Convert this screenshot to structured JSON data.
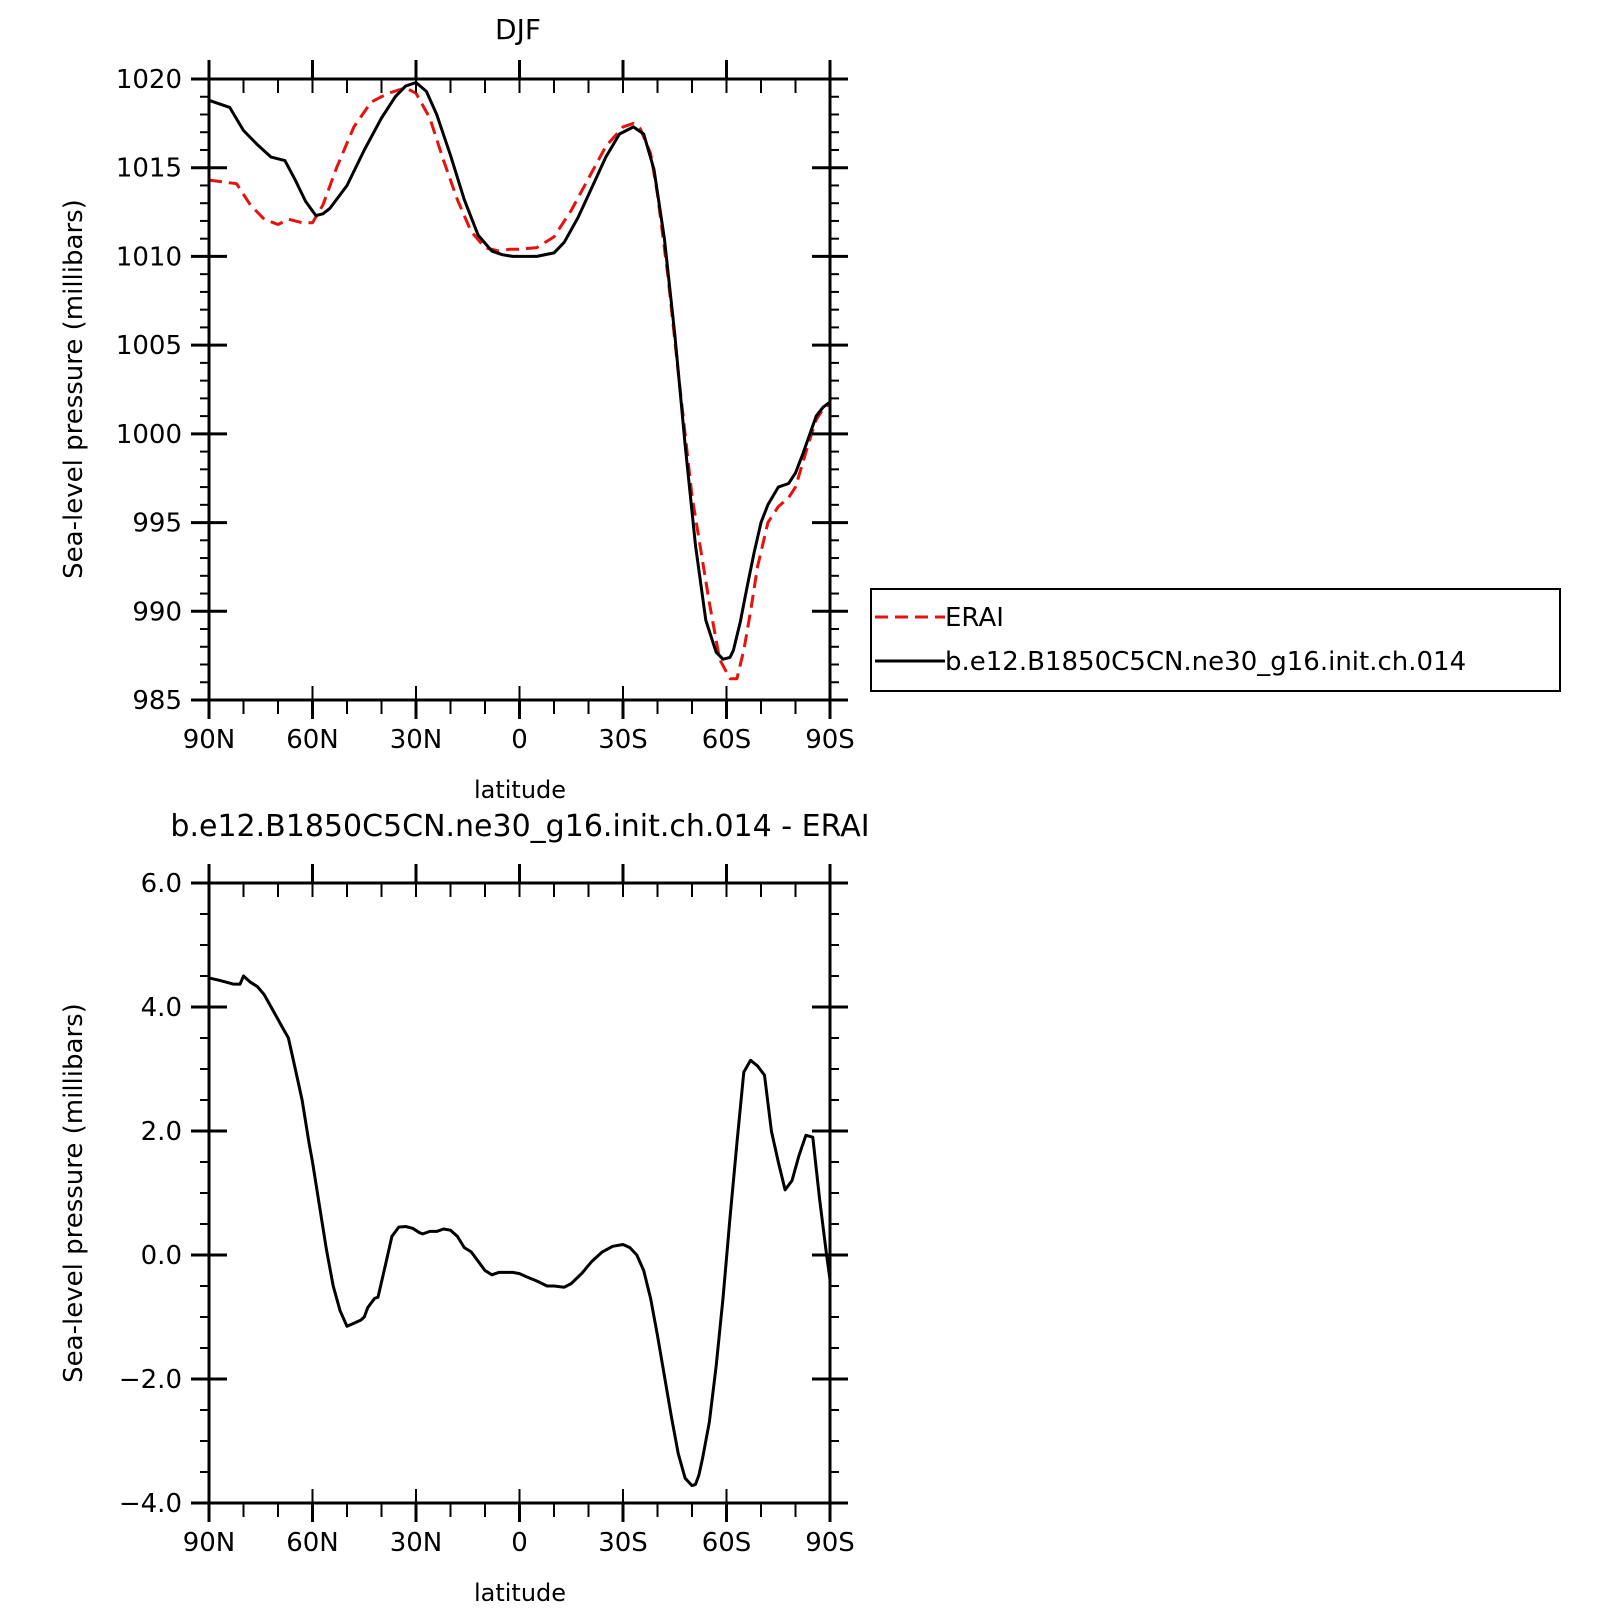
{
  "chart_data": [
    {
      "type": "line",
      "title": "DJF",
      "xlabel": "latitude",
      "ylabel": "Sea-level pressure (millibars)",
      "xlim": [
        90,
        -90
      ],
      "ylim": [
        985,
        1020
      ],
      "x_ticks": [
        {
          "value": 90,
          "label": "90N"
        },
        {
          "value": 60,
          "label": "60N"
        },
        {
          "value": 30,
          "label": "30N"
        },
        {
          "value": 0,
          "label": "0"
        },
        {
          "value": -30,
          "label": "30S"
        },
        {
          "value": -60,
          "label": "60S"
        },
        {
          "value": -90,
          "label": "90S"
        }
      ],
      "y_ticks": [
        {
          "value": 1020,
          "label": "1020"
        },
        {
          "value": 1015,
          "label": "1015"
        },
        {
          "value": 1010,
          "label": "1010"
        },
        {
          "value": 1005,
          "label": "1005"
        },
        {
          "value": 1000,
          "label": "1000"
        },
        {
          "value": 995,
          "label": "995"
        },
        {
          "value": 990,
          "label": "990"
        },
        {
          "value": 985,
          "label": "985"
        }
      ],
      "legend": {
        "placement": "right"
      },
      "series": [
        {
          "name": "ERAI",
          "color": "#e8120c",
          "dash": "dashed",
          "x": [
            90,
            82,
            78,
            74,
            70,
            67,
            63,
            60,
            57,
            53,
            48,
            43,
            38,
            33,
            30,
            26,
            22,
            18,
            14,
            10,
            6,
            3,
            0,
            -5,
            -10,
            -15,
            -20,
            -25,
            -30,
            -33,
            -35,
            -38,
            -40,
            -43,
            -46,
            -50,
            -55,
            -58,
            -61,
            -63,
            -65,
            -67,
            -69,
            -72,
            -75,
            -78,
            -80,
            -82,
            -84,
            -86,
            -88,
            -90
          ],
          "y": [
            1014.3,
            1014.1,
            1012.9,
            1012.1,
            1011.8,
            1012.1,
            1011.9,
            1011.9,
            1012.9,
            1015.0,
            1017.3,
            1018.7,
            1019.2,
            1019.5,
            1019.2,
            1017.8,
            1015.4,
            1013.2,
            1011.4,
            1010.5,
            1010.3,
            1010.4,
            1010.4,
            1010.5,
            1011.1,
            1012.6,
            1014.4,
            1016.2,
            1017.3,
            1017.5,
            1017.2,
            1015.8,
            1013.5,
            1008.9,
            1003.5,
            996.5,
            990.5,
            987.3,
            986.2,
            986.2,
            987.8,
            990.0,
            992.5,
            995.0,
            995.9,
            996.4,
            997.0,
            998.3,
            999.6,
            1000.8,
            1001.4,
            1001.7
          ]
        },
        {
          "name": "b.e12.B1850C5CN.ne30_g16.init.ch.014",
          "color": "#000000",
          "dash": "solid",
          "x": [
            90,
            84,
            80,
            76,
            72,
            70,
            68,
            65,
            62,
            59,
            57,
            55,
            50,
            45,
            40,
            36,
            33,
            30,
            27,
            24,
            20,
            16,
            12,
            8,
            5,
            2,
            0,
            -5,
            -10,
            -13,
            -17,
            -21,
            -25,
            -29,
            -33,
            -36,
            -39,
            -42,
            -45,
            -48,
            -51,
            -54,
            -57,
            -59,
            -61,
            -62,
            -64,
            -66,
            -68,
            -70,
            -72,
            -75,
            -78,
            -80,
            -82,
            -84,
            -86,
            -88,
            -90
          ],
          "y": [
            1018.8,
            1018.4,
            1017.1,
            1016.3,
            1015.6,
            1015.5,
            1015.4,
            1014.3,
            1013.1,
            1012.3,
            1012.4,
            1012.7,
            1014.0,
            1016.0,
            1017.8,
            1019.0,
            1019.6,
            1019.8,
            1019.3,
            1018.0,
            1015.7,
            1013.2,
            1011.2,
            1010.3,
            1010.1,
            1010.0,
            1010.0,
            1010.0,
            1010.2,
            1010.8,
            1012.2,
            1013.9,
            1015.6,
            1016.9,
            1017.3,
            1016.9,
            1014.9,
            1011.0,
            1005.6,
            999.4,
            993.7,
            989.5,
            987.7,
            987.3,
            987.4,
            987.8,
            989.4,
            991.4,
            993.3,
            995.0,
            996.0,
            997.0,
            997.2,
            997.8,
            998.8,
            999.9,
            1001.0,
            1001.5,
            1001.8
          ]
        }
      ]
    },
    {
      "type": "line",
      "title": "b.e12.B1850C5CN.ne30_g16.init.ch.014 - ERAI",
      "xlabel": "latitude",
      "ylabel": "Sea-level pressure (millibars)",
      "xlim": [
        90,
        -90
      ],
      "ylim": [
        -4.0,
        6.0
      ],
      "x_ticks": [
        {
          "value": 90,
          "label": "90N"
        },
        {
          "value": 60,
          "label": "60N"
        },
        {
          "value": 30,
          "label": "30N"
        },
        {
          "value": 0,
          "label": "0"
        },
        {
          "value": -30,
          "label": "30S"
        },
        {
          "value": -60,
          "label": "60S"
        },
        {
          "value": -90,
          "label": "90S"
        }
      ],
      "y_ticks": [
        {
          "value": 6.0,
          "label": "6.0"
        },
        {
          "value": 4.0,
          "label": "4.0"
        },
        {
          "value": 2.0,
          "label": "2.0"
        },
        {
          "value": 0.0,
          "label": "0.0"
        },
        {
          "value": -2.0,
          "label": "−2.0"
        },
        {
          "value": -4.0,
          "label": "−4.0"
        }
      ],
      "series": [
        {
          "color": "#000000",
          "dash": "solid",
          "x": [
            90,
            87,
            85,
            83,
            81,
            80,
            78,
            76,
            74,
            72,
            70,
            69,
            67,
            65,
            63,
            61,
            60,
            58,
            56,
            54,
            52,
            50,
            48,
            46,
            45,
            44,
            42,
            41,
            39,
            37,
            35,
            33,
            31,
            29,
            28,
            26,
            24,
            22,
            20,
            18,
            16,
            14,
            12,
            10,
            8,
            6,
            4,
            2,
            0,
            -2,
            -5,
            -8,
            -10,
            -13,
            -15,
            -18,
            -21,
            -24,
            -27,
            -30,
            -32,
            -34,
            -36,
            -38,
            -40,
            -42,
            -44,
            -46,
            -48,
            -50,
            -51,
            -52,
            -53,
            -55,
            -57,
            -59,
            -61,
            -63,
            -65,
            -67,
            -69,
            -71,
            -73,
            -75,
            -77,
            -79,
            -81,
            -83,
            -85,
            -87,
            -89,
            -90
          ],
          "y": [
            4.47,
            4.43,
            4.4,
            4.37,
            4.37,
            4.5,
            4.4,
            4.33,
            4.2,
            4.0,
            3.8,
            3.7,
            3.5,
            3.0,
            2.5,
            1.8,
            1.5,
            0.8,
            0.1,
            -0.5,
            -0.9,
            -1.15,
            -1.1,
            -1.05,
            -1.0,
            -0.85,
            -0.7,
            -0.68,
            -0.2,
            0.3,
            0.45,
            0.46,
            0.43,
            0.36,
            0.34,
            0.38,
            0.38,
            0.42,
            0.4,
            0.3,
            0.12,
            0.05,
            -0.1,
            -0.25,
            -0.32,
            -0.28,
            -0.28,
            -0.28,
            -0.3,
            -0.35,
            -0.42,
            -0.5,
            -0.5,
            -0.52,
            -0.46,
            -0.3,
            -0.1,
            0.05,
            0.14,
            0.17,
            0.12,
            0.0,
            -0.25,
            -0.7,
            -1.3,
            -1.95,
            -2.6,
            -3.2,
            -3.6,
            -3.72,
            -3.7,
            -3.55,
            -3.3,
            -2.7,
            -1.8,
            -0.7,
            0.6,
            1.8,
            2.95,
            3.14,
            3.05,
            2.9,
            2.0,
            1.5,
            1.05,
            1.2,
            1.6,
            1.93,
            1.9,
            0.9,
            0.0,
            -0.4
          ]
        }
      ]
    }
  ]
}
